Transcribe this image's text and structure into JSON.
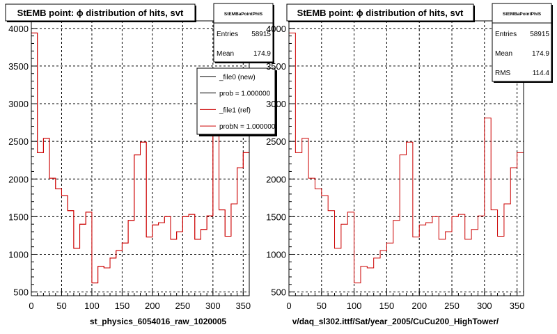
{
  "chart_data": [
    {
      "type": "histogram",
      "title": "StEMB point:  ϕ distribution of hits, svt",
      "xlabel": "st_physics_6054016_raw_1020005",
      "ylabel": "",
      "xlim": [
        0,
        360
      ],
      "ylim": [
        450,
        4100
      ],
      "xticks": [
        "0",
        "50",
        "100",
        "150",
        "200",
        "250",
        "300",
        "350"
      ],
      "yticks": [
        "500",
        "1000",
        "1500",
        "2000",
        "2500",
        "3000",
        "3500",
        "4000"
      ],
      "grid": true,
      "bin_edges": [
        0,
        10,
        20,
        30,
        40,
        50,
        60,
        70,
        80,
        90,
        100,
        110,
        120,
        130,
        140,
        150,
        160,
        170,
        180,
        190,
        200,
        210,
        220,
        230,
        240,
        250,
        260,
        270,
        280,
        290,
        300,
        310,
        320,
        330,
        340,
        350,
        360
      ],
      "series": [
        {
          "name": "_file1 (ref)",
          "color": "#cc0000",
          "values": [
            3940,
            2350,
            2540,
            2010,
            1870,
            1780,
            1580,
            1080,
            1400,
            1560,
            620,
            840,
            820,
            950,
            1050,
            1150,
            1450,
            2320,
            2490,
            1230,
            1390,
            1420,
            1500,
            1200,
            1300,
            1500,
            1530,
            1200,
            1330,
            1510,
            2810,
            1590,
            1240,
            1670,
            2150,
            2350
          ]
        },
        {
          "name": "_file0 (new)",
          "color": "#000000",
          "values": [
            3940,
            2350,
            2540,
            2010,
            1870,
            1780,
            1580,
            1080,
            1400,
            1560,
            620,
            840,
            820,
            950,
            1050,
            1150,
            1450,
            2320,
            2490,
            1230,
            1390,
            1420,
            1500,
            1200,
            1300,
            1500,
            1530,
            1200,
            1330,
            1510,
            2810,
            1590,
            1240,
            1670,
            2150,
            2350
          ]
        }
      ],
      "stats": {
        "title": "StEMBaPointPhiS",
        "rows": [
          {
            "label": "Entries",
            "value": "58915"
          },
          {
            "label": "Mean",
            "value": "174.9"
          }
        ]
      },
      "legend": {
        "placement": "top-right",
        "entries": [
          {
            "text": "_file0 (new)",
            "color": "#000000"
          },
          {
            "text": "prob = 1.000000",
            "color": "#000000"
          },
          {
            "text": "_file1 (ref)",
            "color": "#cc0000"
          },
          {
            "text": "probN = 1.000000",
            "color": "#cc0000"
          }
        ]
      }
    },
    {
      "type": "histogram",
      "title": "StEMB point:  ϕ distribution of hits, svt",
      "xlabel": "v/daq_sl302.ittf/Sat/year_2005/CuCu200_HighTower/",
      "ylabel": "",
      "xlim": [
        0,
        360
      ],
      "ylim": [
        450,
        4100
      ],
      "xticks": [
        "0",
        "50",
        "100",
        "150",
        "200",
        "250",
        "300",
        "350"
      ],
      "yticks": [
        "500",
        "1000",
        "1500",
        "2000",
        "2500",
        "3000",
        "3500",
        "4000"
      ],
      "grid": true,
      "bin_edges": [
        0,
        10,
        20,
        30,
        40,
        50,
        60,
        70,
        80,
        90,
        100,
        110,
        120,
        130,
        140,
        150,
        160,
        170,
        180,
        190,
        200,
        210,
        220,
        230,
        240,
        250,
        260,
        270,
        280,
        290,
        300,
        310,
        320,
        330,
        340,
        350,
        360
      ],
      "series": [
        {
          "name": "",
          "color": "#cc0000",
          "values": [
            3940,
            2350,
            2540,
            2010,
            1870,
            1780,
            1580,
            1080,
            1400,
            1560,
            620,
            840,
            820,
            950,
            1050,
            1150,
            1450,
            2320,
            2490,
            1230,
            1390,
            1420,
            1500,
            1200,
            1300,
            1500,
            1530,
            1200,
            1330,
            1510,
            2810,
            1590,
            1240,
            1670,
            2150,
            2350
          ]
        }
      ],
      "stats": {
        "title": "StEMBaPointPhiS",
        "rows": [
          {
            "label": "Entries",
            "value": "58915"
          },
          {
            "label": "Mean",
            "value": "174.9"
          },
          {
            "label": "RMS",
            "value": "114.4"
          }
        ]
      },
      "legend": null
    }
  ]
}
